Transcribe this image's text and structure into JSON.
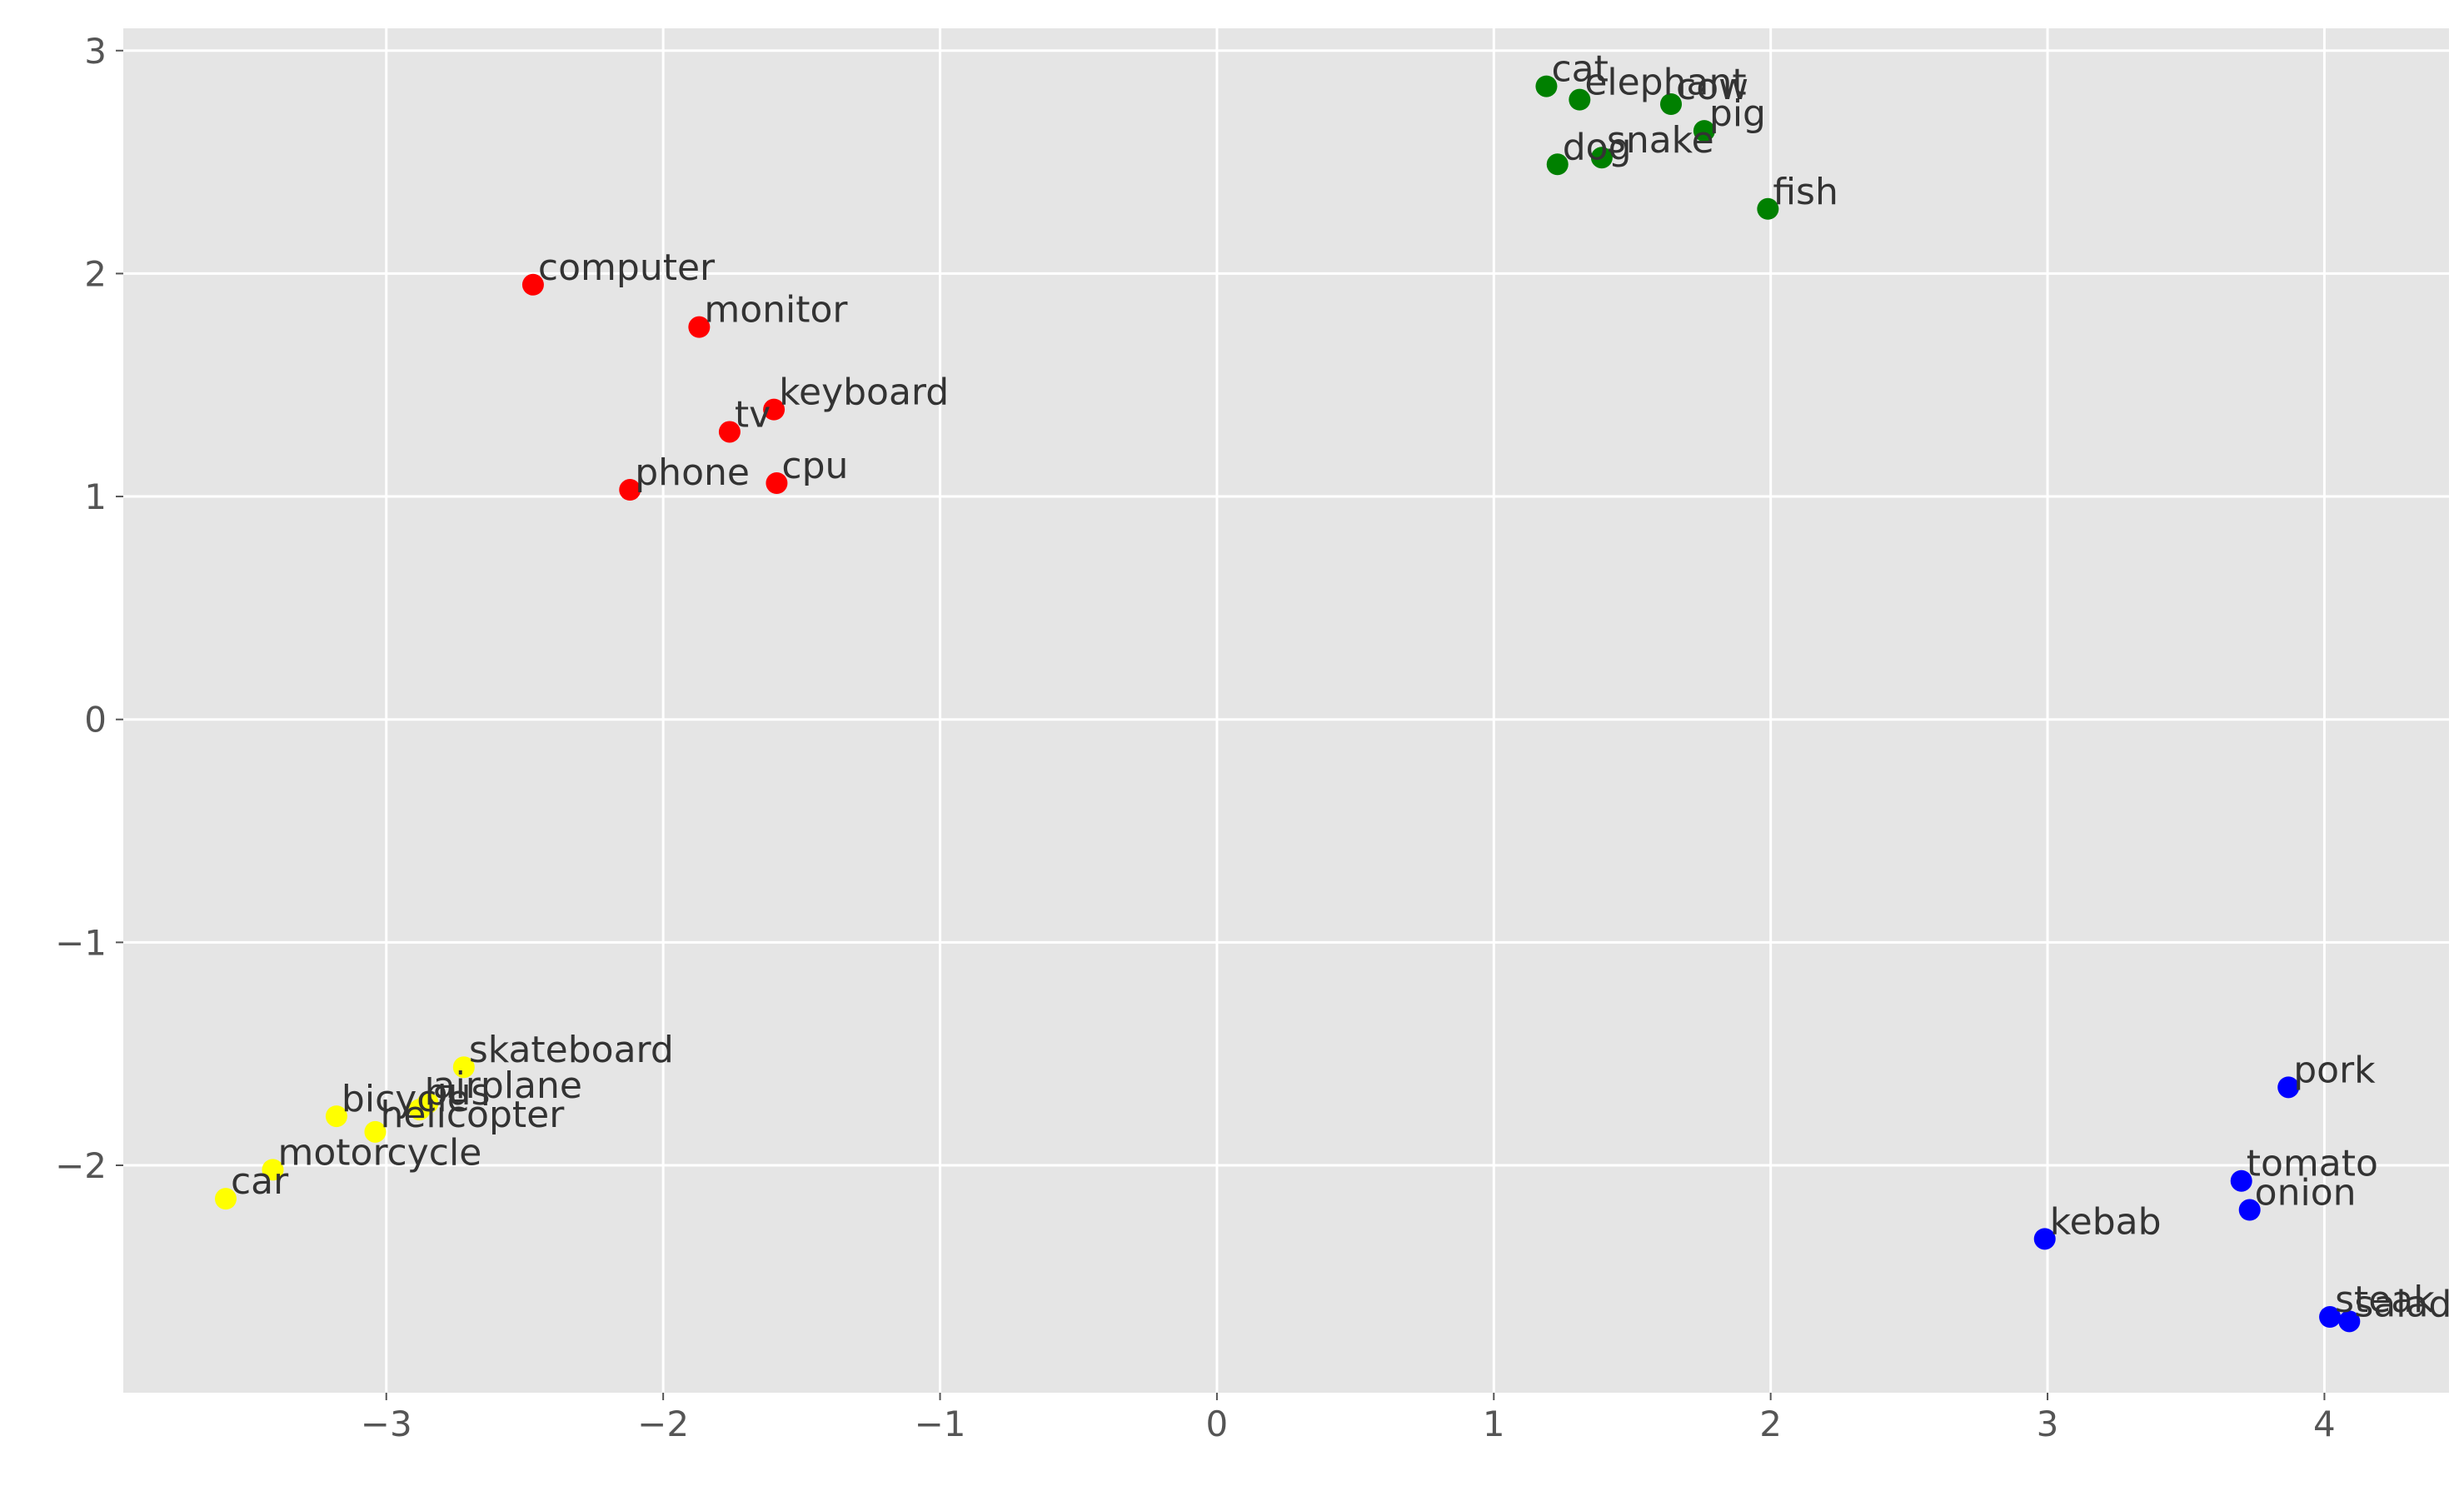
{
  "chart_data": {
    "type": "scatter",
    "title": "",
    "xlabel": "",
    "ylabel": "",
    "xlim": [
      -3.95,
      4.45
    ],
    "ylim": [
      -3.02,
      3.1
    ],
    "grid": true,
    "background": "#e5e5e5",
    "grid_color": "#ffffff",
    "x_ticks": [
      -3,
      -2,
      -1,
      0,
      1,
      2,
      3,
      4
    ],
    "x_tick_labels": [
      "−3",
      "−2",
      "−1",
      "0",
      "1",
      "2",
      "3",
      "4"
    ],
    "y_ticks": [
      -2,
      -1,
      0,
      1,
      2,
      3
    ],
    "y_tick_labels": [
      "−2",
      "−1",
      "0",
      "1",
      "2",
      "3"
    ],
    "series": [
      {
        "color": "#ff0000",
        "points": [
          {
            "label": "computer",
            "x": -2.47,
            "y": 1.95
          },
          {
            "label": "monitor",
            "x": -1.87,
            "y": 1.76
          },
          {
            "label": "keyboard",
            "x": -1.6,
            "y": 1.39
          },
          {
            "label": "tv",
            "x": -1.76,
            "y": 1.29
          },
          {
            "label": "phone",
            "x": -2.12,
            "y": 1.03
          },
          {
            "label": "cpu",
            "x": -1.59,
            "y": 1.06
          }
        ]
      },
      {
        "color": "#008000",
        "points": [
          {
            "label": "cat",
            "x": 1.19,
            "y": 2.84
          },
          {
            "label": "elephant",
            "x": 1.31,
            "y": 2.78
          },
          {
            "label": "cow",
            "x": 1.64,
            "y": 2.76
          },
          {
            "label": "pig",
            "x": 1.76,
            "y": 2.64
          },
          {
            "label": "dog",
            "x": 1.23,
            "y": 2.49
          },
          {
            "label": "snake",
            "x": 1.39,
            "y": 2.52
          },
          {
            "label": "fish",
            "x": 1.99,
            "y": 2.29
          }
        ]
      },
      {
        "color": "#ffff00",
        "points": [
          {
            "label": "skateboard",
            "x": -2.72,
            "y": -1.56
          },
          {
            "label": "airplane",
            "x": -2.85,
            "y": -1.72
          },
          {
            "label": "bicycle",
            "x": -3.18,
            "y": -1.78
          },
          {
            "label": "bus",
            "x": -2.88,
            "y": -1.75
          },
          {
            "label": "helicopter",
            "x": -3.04,
            "y": -1.85
          },
          {
            "label": "motorcycle",
            "x": -3.41,
            "y": -2.02
          },
          {
            "label": "car",
            "x": -3.58,
            "y": -2.15
          }
        ]
      },
      {
        "color": "#0000ff",
        "points": [
          {
            "label": "pork",
            "x": 3.87,
            "y": -1.65
          },
          {
            "label": "tomato",
            "x": 3.7,
            "y": -2.07
          },
          {
            "label": "onion",
            "x": 3.73,
            "y": -2.2
          },
          {
            "label": "kebab",
            "x": 2.99,
            "y": -2.33
          },
          {
            "label": "steak",
            "x": 4.02,
            "y": -2.68
          },
          {
            "label": "salad",
            "x": 4.09,
            "y": -2.7
          }
        ]
      }
    ]
  }
}
